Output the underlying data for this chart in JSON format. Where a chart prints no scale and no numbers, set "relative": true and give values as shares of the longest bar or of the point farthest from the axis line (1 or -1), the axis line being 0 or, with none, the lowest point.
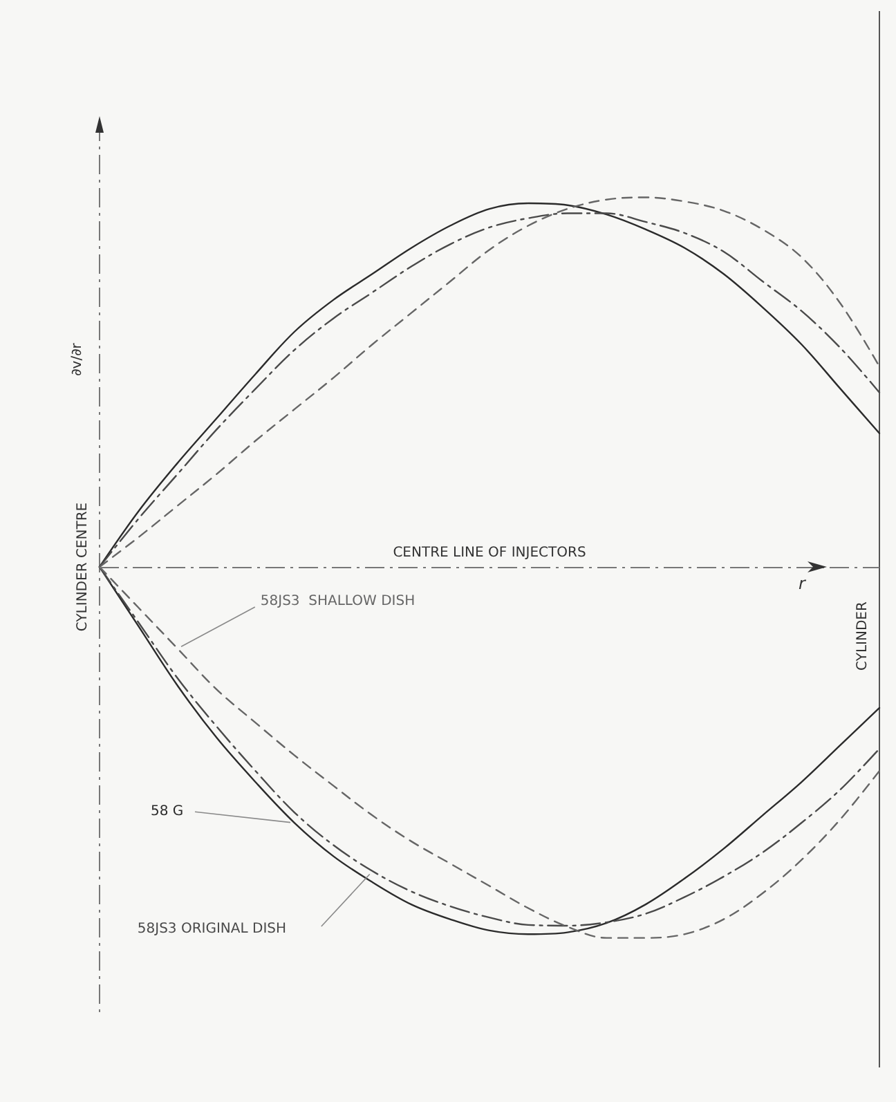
{
  "chart_data": {
    "type": "line",
    "relative": true,
    "ylabel": "∂v/∂r",
    "xlabel": "r",
    "grid": false,
    "legend": false,
    "marker": "none",
    "categories": [
      null,
      null,
      null,
      null,
      null,
      null,
      null,
      null,
      null,
      null,
      null,
      null,
      null,
      null,
      null,
      null,
      null,
      null,
      null,
      null,
      null
    ],
    "series": [
      {
        "color": "#2b2b2b",
        "line_style": "solid",
        "values": [
          0,
          0.15,
          0.28,
          0.4,
          0.52,
          0.634,
          0.72,
          0.79,
          0.86,
          0.92,
          0.965,
          0.98,
          0.975,
          0.95,
          0.91,
          0.86,
          0.79,
          0.7,
          0.6,
          0.48,
          0.36
        ]
      },
      {
        "color": "#4a4a4a",
        "line_style": "dashdot",
        "values": [
          0,
          0.13,
          0.25,
          0.37,
          0.48,
          0.585,
          0.67,
          0.74,
          0.81,
          0.87,
          0.915,
          0.94,
          0.953,
          0.953,
          0.93,
          0.9,
          0.85,
          0.77,
          0.69,
          0.59,
          0.47
        ]
      },
      {
        "color": "#666666",
        "line_style": "dashed",
        "values": [
          0,
          0.08,
          0.165,
          0.25,
          0.34,
          0.425,
          0.51,
          0.6,
          0.685,
          0.77,
          0.855,
          0.92,
          0.965,
          0.99,
          0.996,
          0.985,
          0.96,
          0.91,
          0.835,
          0.71,
          0.54
        ]
      },
      {
        "name": "58 G",
        "color": "#2b2b2b",
        "line_style": "solid",
        "values": [
          0,
          -0.16,
          -0.32,
          -0.46,
          -0.58,
          -0.69,
          -0.78,
          -0.85,
          -0.91,
          -0.95,
          -0.98,
          -0.99,
          -0.985,
          -0.96,
          -0.91,
          -0.84,
          -0.76,
          -0.67,
          -0.58,
          -0.48,
          -0.38
        ]
      },
      {
        "name": "58JS3 ORIGINAL DISH",
        "color": "#4a4a4a",
        "line_style": "dashdot",
        "values": [
          0,
          -0.15,
          -0.3,
          -0.43,
          -0.55,
          -0.662,
          -0.75,
          -0.82,
          -0.875,
          -0.915,
          -0.945,
          -0.965,
          -0.967,
          -0.958,
          -0.935,
          -0.89,
          -0.835,
          -0.77,
          -0.69,
          -0.6,
          -0.49
        ]
      },
      {
        "name": "58JS3  SHALLOW DISH",
        "color": "#666666",
        "line_style": "dashed",
        "values": [
          0,
          -0.11,
          -0.22,
          -0.33,
          -0.42,
          -0.508,
          -0.59,
          -0.67,
          -0.74,
          -0.8,
          -0.86,
          -0.92,
          -0.97,
          -1.0,
          -1.0,
          -0.99,
          -0.95,
          -0.88,
          -0.79,
          -0.68,
          -0.55
        ]
      }
    ],
    "ref_lines": [
      {
        "axis": "y",
        "value": 0,
        "label": "CENTRE LINE OF INJECTORS",
        "line_style": "dashdot",
        "color": "#777777"
      }
    ],
    "annotations": [
      "CYLINDER CENTRE",
      "CYLINDER"
    ]
  }
}
